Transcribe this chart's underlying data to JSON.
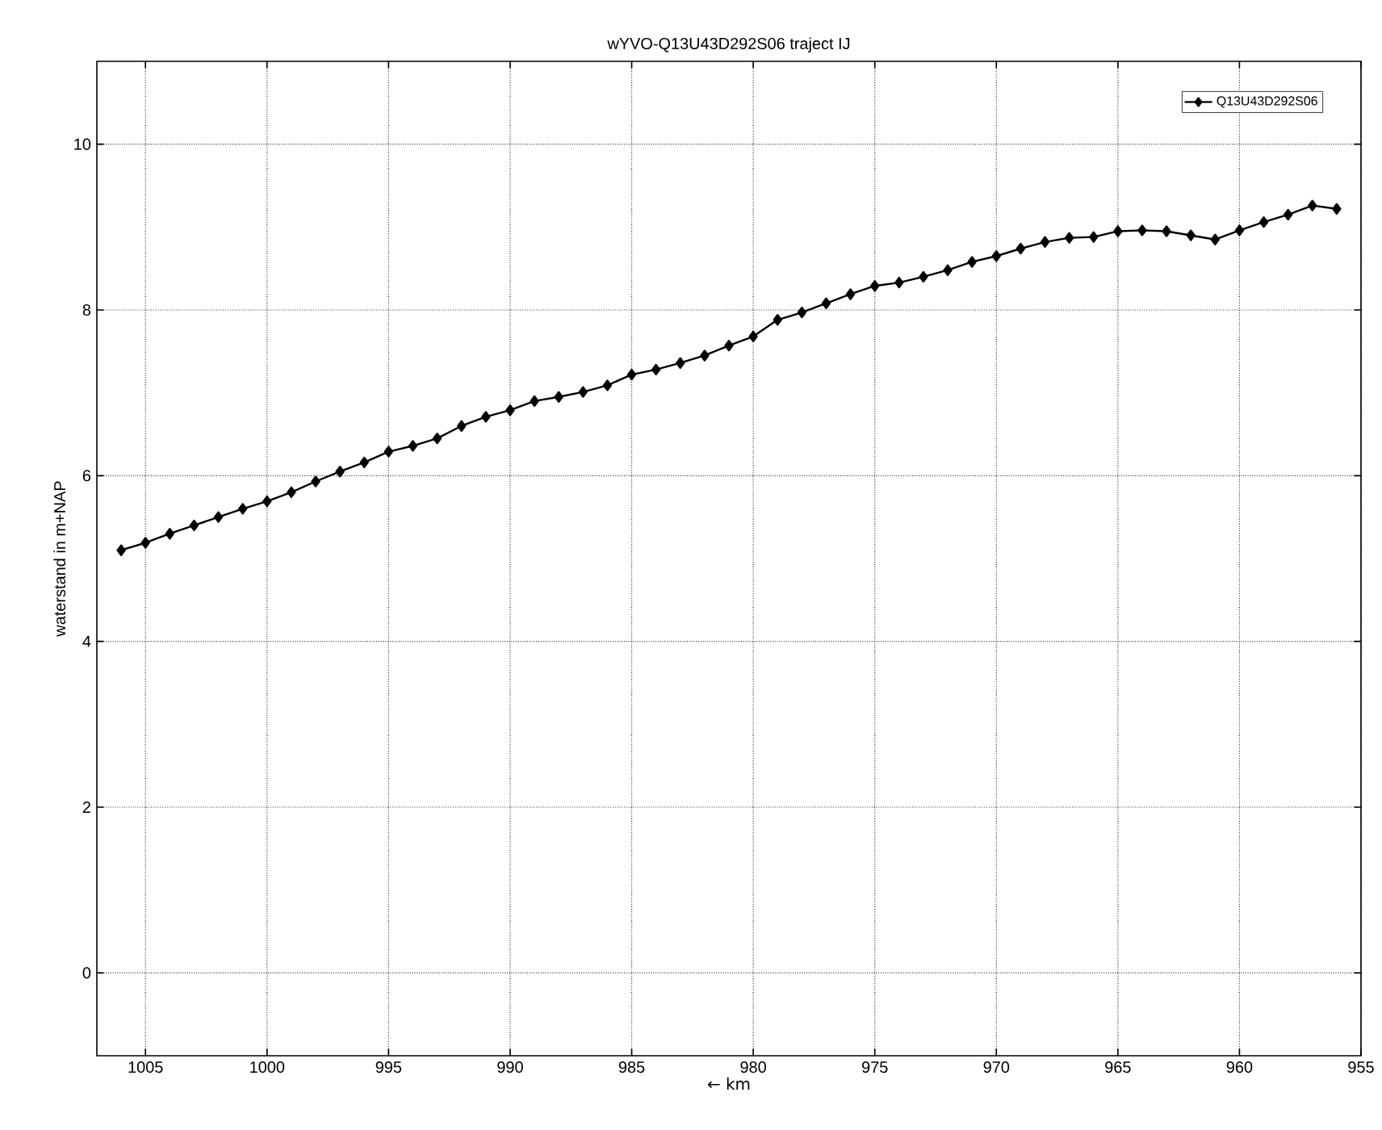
{
  "chart_data": {
    "type": "line",
    "title": "wYVO-Q13U43D292S06 traject IJ",
    "xlabel": "← km",
    "ylabel": "waterstand in m+NAP",
    "x": [
      1006,
      1005,
      1004,
      1003,
      1002,
      1001,
      1000,
      999,
      998,
      997,
      996,
      995,
      994,
      993,
      992,
      991,
      990,
      989,
      988,
      987,
      986,
      985,
      984,
      983,
      982,
      981,
      980,
      979,
      978,
      977,
      976,
      975,
      974,
      973,
      972,
      971,
      970,
      969,
      968,
      967,
      966,
      965,
      964,
      963,
      962,
      961,
      960,
      959,
      958,
      957,
      956
    ],
    "series": [
      {
        "name": "Q13U43D292S06",
        "color": "#000000",
        "values": [
          5.1,
          5.19,
          5.3,
          5.4,
          5.5,
          5.6,
          5.69,
          5.8,
          5.93,
          6.05,
          6.16,
          6.29,
          6.36,
          6.45,
          6.6,
          6.71,
          6.79,
          6.9,
          6.95,
          7.01,
          7.09,
          7.22,
          7.28,
          7.36,
          7.45,
          7.57,
          7.68,
          7.88,
          7.97,
          8.08,
          8.19,
          8.29,
          8.33,
          8.4,
          8.48,
          8.58,
          8.65,
          8.74,
          8.82,
          8.87,
          8.88,
          8.95,
          8.96,
          8.95,
          8.9,
          8.85,
          8.96,
          9.06,
          9.15,
          9.26,
          9.22
        ]
      }
    ],
    "xlim": [
      1007,
      955
    ],
    "ylim": [
      -1,
      11
    ],
    "xticks": [
      1005,
      1000,
      995,
      990,
      985,
      980,
      975,
      970,
      965,
      960,
      955
    ],
    "yticks": [
      0,
      2,
      4,
      6,
      8,
      10
    ],
    "grid": true,
    "legend": "top right",
    "marker": "diamond",
    "line_style": "solid"
  }
}
